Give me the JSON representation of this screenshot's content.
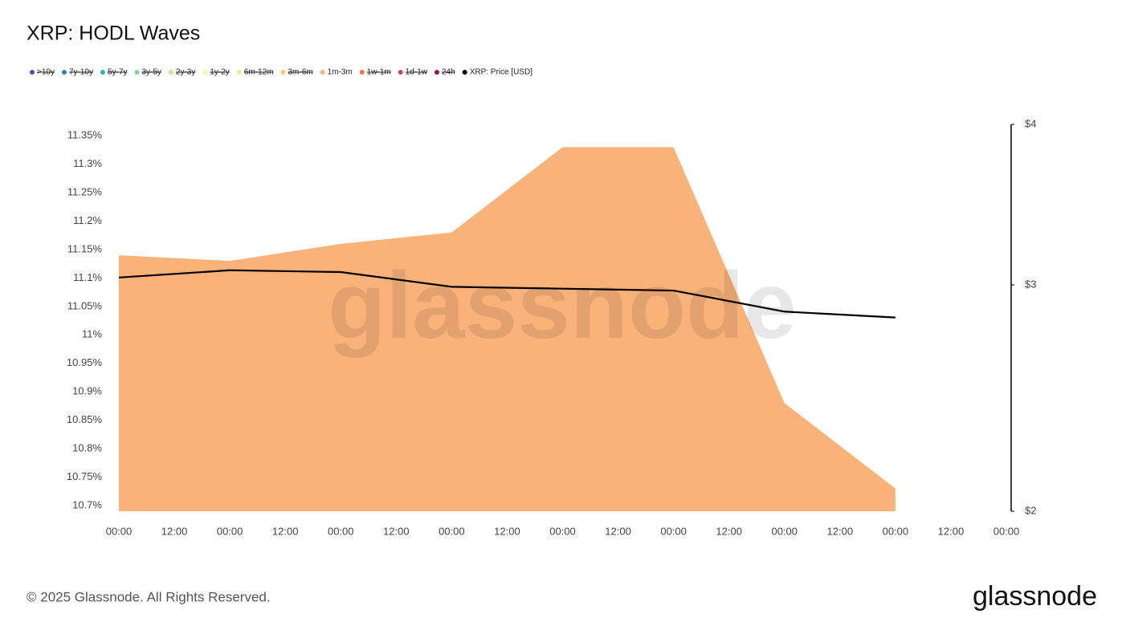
{
  "chart_data": {
    "type": "area",
    "title": "XRP: HODL Waves",
    "watermark": "glassnode",
    "footer": "© 2025 Glassnode. All Rights Reserved.",
    "logo": "glassnode",
    "x": [
      0,
      24,
      48,
      72,
      96,
      120,
      144,
      168
    ],
    "xlim": [
      0,
      192
    ],
    "xticks": [
      {
        "value": 0,
        "label": "00:00"
      },
      {
        "value": 12,
        "label": "12:00"
      },
      {
        "value": 24,
        "label": "00:00"
      },
      {
        "value": 36,
        "label": "12:00"
      },
      {
        "value": 48,
        "label": "00:00"
      },
      {
        "value": 60,
        "label": "12:00"
      },
      {
        "value": 72,
        "label": "00:00"
      },
      {
        "value": 84,
        "label": "12:00"
      },
      {
        "value": 96,
        "label": "00:00"
      },
      {
        "value": 108,
        "label": "12:00"
      },
      {
        "value": 120,
        "label": "00:00"
      },
      {
        "value": 132,
        "label": "12:00"
      },
      {
        "value": 144,
        "label": "00:00"
      },
      {
        "value": 156,
        "label": "12:00"
      },
      {
        "value": 168,
        "label": "00:00"
      },
      {
        "value": 180,
        "label": "12:00"
      },
      {
        "value": 192,
        "label": "00:00"
      }
    ],
    "ylim": [
      10.69,
      11.37
    ],
    "yticks": [
      {
        "value": 10.7,
        "label": "10.7%"
      },
      {
        "value": 10.75,
        "label": "10.75%"
      },
      {
        "value": 10.8,
        "label": "10.8%"
      },
      {
        "value": 10.85,
        "label": "10.85%"
      },
      {
        "value": 10.9,
        "label": "10.9%"
      },
      {
        "value": 10.95,
        "label": "10.95%"
      },
      {
        "value": 11,
        "label": "11%"
      },
      {
        "value": 11.05,
        "label": "11.05%"
      },
      {
        "value": 11.1,
        "label": "11.1%"
      },
      {
        "value": 11.15,
        "label": "11.15%"
      },
      {
        "value": 11.2,
        "label": "11.2%"
      },
      {
        "value": 11.25,
        "label": "11.25%"
      },
      {
        "value": 11.3,
        "label": "11.3%"
      },
      {
        "value": 11.35,
        "label": "11.35%"
      }
    ],
    "y2lim": [
      2,
      4
    ],
    "y2log": true,
    "y2ticks": [
      {
        "value": 2,
        "label": "$2"
      },
      {
        "value": 3,
        "label": "$3"
      },
      {
        "value": 4,
        "label": "$4"
      }
    ],
    "series": [
      {
        "name": ">10y",
        "color": "#5b4ea8",
        "visible": false
      },
      {
        "name": "7y-10y",
        "color": "#2f7fc1",
        "visible": false
      },
      {
        "name": "5y-7y",
        "color": "#3bb3a3",
        "visible": false
      },
      {
        "name": "3y-5y",
        "color": "#7fd19a",
        "visible": false
      },
      {
        "name": "2y-3y",
        "color": "#c3e89a",
        "visible": false
      },
      {
        "name": "1y-2y",
        "color": "#f4f6b0",
        "visible": false
      },
      {
        "name": "6m-12m",
        "color": "#fde68f",
        "visible": false
      },
      {
        "name": "3m-6m",
        "color": "#fcc96e",
        "visible": false
      },
      {
        "name": "1m-3m",
        "color": "#fab27b",
        "visible": true,
        "values": [
          11.14,
          11.13,
          11.16,
          11.18,
          11.33,
          11.33,
          10.88,
          10.73
        ]
      },
      {
        "name": "1w-1m",
        "color": "#f07548",
        "visible": false
      },
      {
        "name": "1d-1w",
        "color": "#d9405a",
        "visible": false
      },
      {
        "name": "24h",
        "color": "#a0144c",
        "visible": false
      },
      {
        "name": "XRP: Price [USD]",
        "color": "#000000",
        "visible": true,
        "type": "line",
        "axis": "y2",
        "values": [
          3.04,
          3.08,
          3.07,
          2.99,
          2.98,
          2.97,
          2.86,
          2.83
        ]
      }
    ]
  }
}
